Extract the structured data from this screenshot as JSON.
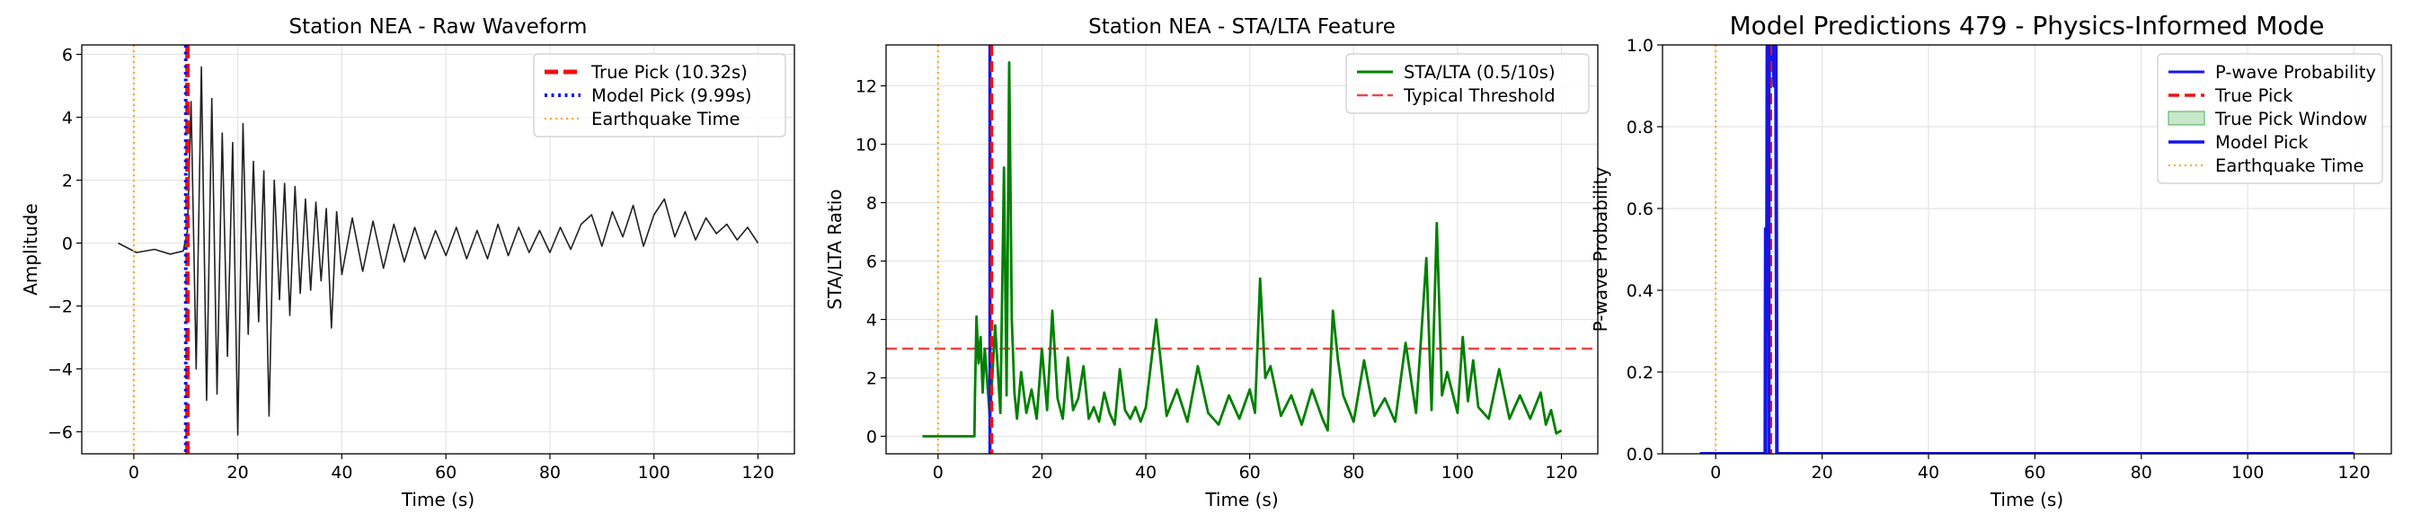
{
  "chart_data": [
    {
      "type": "line",
      "title": "Station NEA - Raw Waveform",
      "xlabel": "Time (s)",
      "ylabel": "Amplitude",
      "xlim": [
        -10,
        127
      ],
      "ylim": [
        -6.7,
        6.3
      ],
      "xticks": [
        0,
        20,
        40,
        60,
        80,
        100,
        120
      ],
      "yticks": [
        -6,
        -4,
        -2,
        0,
        2,
        4,
        6
      ],
      "grid": true,
      "legend_position": "top-right",
      "series": [
        {
          "name": "",
          "color": "#222222",
          "x": [
            -3.0,
            0.5,
            4.0,
            7.0,
            9.5,
            10.32,
            11.0,
            12.0,
            13.0,
            14.0,
            15.0,
            16.0,
            17.0,
            18.0,
            19.0,
            20.0,
            21.0,
            22.0,
            23.0,
            24.0,
            25.0,
            26.0,
            27.0,
            28.0,
            29.0,
            30.0,
            31.0,
            32.0,
            33.0,
            34.0,
            35.0,
            36.0,
            37.0,
            38.0,
            39.0,
            40.0,
            42.0,
            44.0,
            46.0,
            48.0,
            50.0,
            52.0,
            54.0,
            56.0,
            58.0,
            60.0,
            62.0,
            64.0,
            66.0,
            68.0,
            70.0,
            72.0,
            74.0,
            76.0,
            78.0,
            80.0,
            82.0,
            84.0,
            86.0,
            88.0,
            90.0,
            92.0,
            94.0,
            96.0,
            98.0,
            100.0,
            102.0,
            104.0,
            106.0,
            108.0,
            110.0,
            112.0,
            114.0,
            116.0,
            118.0,
            120.0
          ],
          "y": [
            0.0,
            -0.3,
            -0.2,
            -0.35,
            -0.25,
            0.4,
            4.5,
            -4.0,
            5.6,
            -5.0,
            4.6,
            -4.8,
            3.5,
            -3.6,
            3.2,
            -6.1,
            3.8,
            -2.9,
            2.6,
            -2.5,
            2.3,
            -5.5,
            2.0,
            -1.8,
            1.9,
            -2.3,
            1.8,
            -1.6,
            1.4,
            -1.5,
            1.3,
            -1.2,
            1.1,
            -2.7,
            1.0,
            -1.0,
            0.8,
            -0.9,
            0.7,
            -0.8,
            0.6,
            -0.6,
            0.5,
            -0.5,
            0.4,
            -0.4,
            0.5,
            -0.5,
            0.4,
            -0.5,
            0.6,
            -0.4,
            0.5,
            -0.3,
            0.4,
            -0.3,
            0.5,
            -0.2,
            0.6,
            0.9,
            -0.1,
            1.0,
            0.2,
            1.2,
            -0.1,
            0.9,
            1.4,
            0.2,
            1.0,
            0.1,
            0.8,
            0.3,
            0.6,
            0.1,
            0.5,
            0.0
          ]
        }
      ],
      "vlines": [
        {
          "name": "True Pick (10.32s)",
          "x": 10.32,
          "color": "#ee1111",
          "style": "dashed-thick"
        },
        {
          "name": "Model Pick (9.99s)",
          "x": 9.99,
          "color": "#1515e8",
          "style": "dotted"
        },
        {
          "name": "Earthquake Time",
          "x": 0,
          "color": "#ffa500",
          "style": "dotted-thin"
        }
      ],
      "hlines": [],
      "legend": [
        "True Pick (10.32s)",
        "Model Pick (9.99s)",
        "Earthquake Time"
      ]
    },
    {
      "type": "line",
      "title": "Station NEA - STA/LTA Feature",
      "xlabel": "Time (s)",
      "ylabel": "STA/LTA Ratio",
      "xlim": [
        -10,
        127
      ],
      "ylim": [
        -0.6,
        13.4
      ],
      "xticks": [
        0,
        20,
        40,
        60,
        80,
        100,
        120
      ],
      "yticks": [
        0,
        2,
        4,
        6,
        8,
        10,
        12
      ],
      "grid": true,
      "legend_position": "top-right",
      "series": [
        {
          "name": "STA/LTA (0.5/10s)",
          "color": "#008000",
          "x": [
            -3.0,
            7.0,
            7.1,
            7.4,
            7.8,
            8.2,
            8.6,
            9.0,
            10.0,
            11.0,
            12.0,
            12.7,
            13.2,
            13.7,
            14.2,
            14.7,
            15.2,
            16.0,
            17.0,
            18.0,
            19.0,
            20.0,
            21.0,
            22.0,
            23.0,
            24.0,
            25.0,
            26.0,
            27.0,
            28.0,
            29.0,
            30.0,
            31.0,
            32.0,
            33.0,
            34.0,
            35.0,
            36.0,
            37.0,
            38.0,
            39.0,
            40.0,
            42.0,
            44.0,
            46.0,
            48.0,
            50.0,
            52.0,
            54.0,
            56.0,
            58.0,
            60.0,
            61.0,
            62.0,
            63.0,
            64.0,
            66.0,
            68.0,
            70.0,
            72.0,
            74.0,
            75.0,
            76.0,
            77.0,
            78.0,
            80.0,
            82.0,
            84.0,
            86.0,
            88.0,
            90.0,
            92.0,
            93.0,
            94.0,
            95.0,
            96.0,
            97.0,
            98.0,
            100.0,
            101.0,
            102.0,
            103.0,
            104.0,
            106.0,
            108.0,
            110.0,
            112.0,
            114.0,
            116.0,
            117.0,
            118.0,
            119.0,
            120.0
          ],
          "y": [
            0.0,
            0.0,
            1.4,
            4.1,
            2.5,
            3.4,
            1.5,
            3.0,
            0.6,
            3.8,
            0.8,
            9.2,
            1.4,
            12.8,
            4.0,
            1.5,
            0.6,
            2.2,
            0.8,
            1.6,
            0.6,
            3.0,
            0.9,
            4.3,
            1.3,
            0.6,
            2.7,
            0.9,
            1.3,
            2.4,
            0.6,
            1.0,
            0.5,
            1.5,
            0.8,
            0.4,
            2.3,
            0.9,
            0.6,
            1.0,
            0.5,
            1.0,
            4.0,
            0.7,
            1.6,
            0.5,
            2.4,
            0.8,
            0.4,
            1.4,
            0.6,
            1.6,
            0.8,
            5.4,
            2.0,
            2.4,
            0.7,
            1.4,
            0.4,
            1.6,
            0.6,
            0.2,
            4.3,
            2.6,
            1.4,
            0.5,
            2.6,
            0.7,
            1.3,
            0.5,
            3.2,
            0.8,
            3.4,
            6.1,
            0.9,
            7.3,
            1.4,
            2.2,
            0.8,
            3.4,
            1.2,
            2.6,
            1.0,
            0.6,
            2.3,
            0.6,
            1.4,
            0.6,
            1.5,
            0.4,
            0.9,
            0.1,
            0.2
          ]
        }
      ],
      "vlines": [
        {
          "name": "",
          "x": 0,
          "color": "#ffa500",
          "style": "dotted-thin"
        },
        {
          "name": "",
          "x": 9.99,
          "color": "#1515e8",
          "style": "solid"
        },
        {
          "name": "",
          "x": 10.32,
          "color": "#ee1111",
          "style": "dashed"
        }
      ],
      "hlines": [
        {
          "name": "Typical Threshold",
          "y": 3.0,
          "color": "#ee4444",
          "style": "dashed"
        }
      ],
      "legend": [
        "STA/LTA (0.5/10s)",
        "Typical Threshold"
      ]
    },
    {
      "type": "line",
      "title": "Model Predictions 479 - Physics-Informed Mode",
      "xlabel": "Time (s)",
      "ylabel": "P-wave Probability",
      "xlim": [
        -10,
        127
      ],
      "ylim": [
        0.0,
        1.0
      ],
      "xticks": [
        0,
        20,
        40,
        60,
        80,
        100,
        120
      ],
      "yticks": [
        0.0,
        0.2,
        0.4,
        0.6,
        0.8,
        1.0
      ],
      "grid": true,
      "legend_position": "top-right",
      "series": [
        {
          "name": "P-wave Probability",
          "color": "#1515e8",
          "x": [
            -3.0,
            9.3,
            9.4,
            9.6,
            9.7,
            9.9,
            10.0,
            10.1,
            10.2,
            10.4,
            10.6,
            10.8,
            11.0,
            11.1,
            11.3,
            11.5,
            120.0
          ],
          "y": [
            0.0,
            0.0,
            0.55,
            0.3,
            1.0,
            1.0,
            0.9,
            1.0,
            1.0,
            0.95,
            1.0,
            1.0,
            0.9,
            1.0,
            1.0,
            0.0,
            0.0
          ]
        }
      ],
      "bands": [
        {
          "name": "True Pick Window",
          "x": [
            10.1,
            10.6
          ],
          "color": "#4caf50"
        }
      ],
      "vlines": [
        {
          "name": "True Pick",
          "x": 10.32,
          "color": "#ee1111",
          "style": "dashed"
        },
        {
          "name": "Model Pick",
          "x": 9.99,
          "color": "#1515e8",
          "style": "solid"
        },
        {
          "name": "Earthquake Time",
          "x": 0,
          "color": "#ffa500",
          "style": "dotted-thin"
        }
      ],
      "hlines": [],
      "legend": [
        "P-wave Probability",
        "True Pick",
        "True Pick Window",
        "Model Pick",
        "Earthquake Time"
      ]
    }
  ]
}
